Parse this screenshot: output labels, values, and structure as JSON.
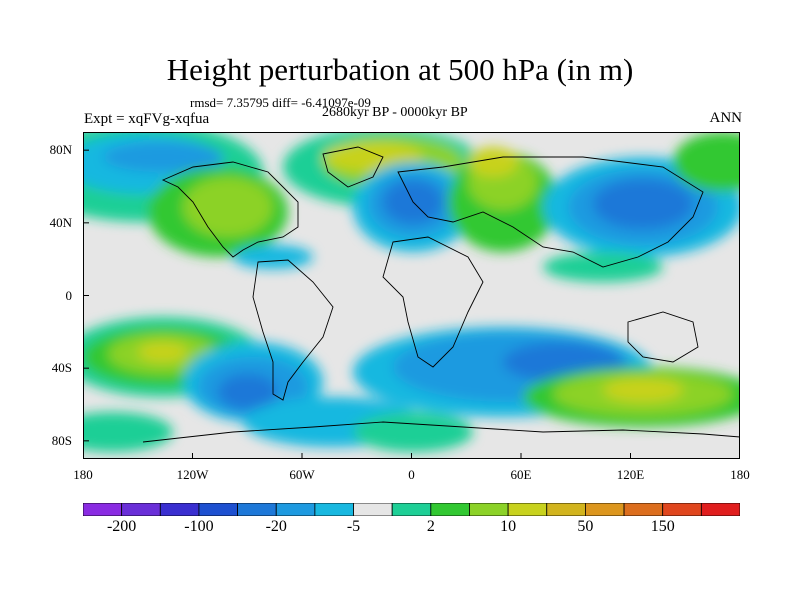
{
  "title": "Height perturbation at 500 hPa (in m)",
  "stats": "rmsd= 7.35795 diff= -6.41097e-09",
  "experiment": "Expt = xqFVg-xqfua",
  "period": "2680kyr BP - 0000kyr BP",
  "season": "ANN",
  "lat_labels": [
    "80N",
    "40N",
    "0",
    "40S",
    "80S"
  ],
  "lat_values": [
    80,
    40,
    0,
    -40,
    -80
  ],
  "lon_labels": [
    "180",
    "120W",
    "60W",
    "0",
    "60E",
    "120E",
    "180"
  ],
  "lon_values": [
    -180,
    -120,
    -60,
    0,
    60,
    120,
    180
  ],
  "colorbar": {
    "colors": [
      "#8a2be2",
      "#6a2fd8",
      "#3a2fd0",
      "#1e50d0",
      "#1e78d8",
      "#1e9ae0",
      "#19b8e0",
      "#e6e6e6",
      "#1ecf96",
      "#32c832",
      "#8cd228",
      "#c8d21e",
      "#d2b41e",
      "#dc961e",
      "#dc6e1e",
      "#e0461e",
      "#e01e1e"
    ],
    "tick_labels": [
      "-200",
      "-100",
      "-20",
      "-5",
      "2",
      "10",
      "50",
      "150"
    ]
  },
  "map_colors": {
    "neutral": "#e6e6e6",
    "neg1": "#19b8e0",
    "neg2": "#1e9ae0",
    "neg3": "#1e78d8",
    "neg4": "#1e50d0",
    "pos1": "#1ecf96",
    "pos2": "#32c832",
    "pos3": "#8cd228",
    "pos4": "#c8d21e",
    "pos5": "#d2b41e"
  }
}
